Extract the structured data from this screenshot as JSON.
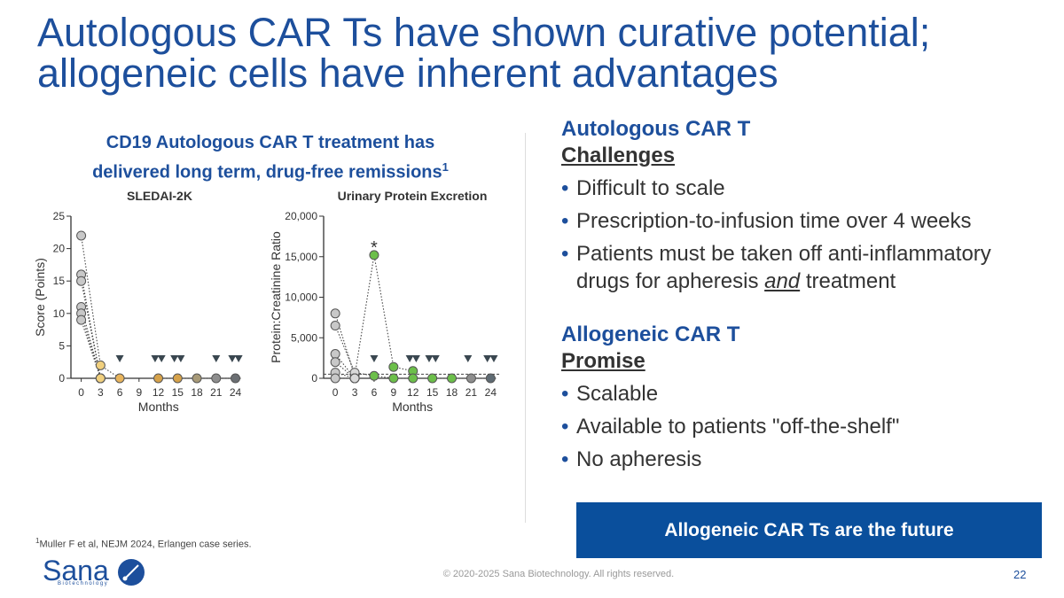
{
  "title": [
    "Autologous CAR Ts have shown curative potential;",
    "allogeneic cells have inherent advantages"
  ],
  "subtitle": {
    "lines": [
      "CD19 Autologous CAR T treatment has",
      "delivered long term, drug-free remissions"
    ],
    "ref": "1"
  },
  "chart_data": [
    {
      "type": "line",
      "title": "SLEDAI-2K",
      "xlabel": "Months",
      "ylabel": "Score (Points)",
      "xlim": [
        -1.6,
        26
      ],
      "ylim": [
        0,
        25
      ],
      "xticks": [
        0,
        3,
        6,
        9,
        12,
        15,
        18,
        21,
        24
      ],
      "yticks": [
        0,
        5,
        10,
        15,
        20,
        25
      ],
      "point_colors": [
        "#c8c8c8",
        "#f1d07e",
        "#e8b45c",
        "#dcaa52",
        "#d6a24a",
        "#d6a24a",
        "#a89a78",
        "#8e8e8e",
        "#6b6f73"
      ],
      "series": [
        {
          "x": [
            0,
            3,
            6
          ],
          "values": [
            22,
            2,
            0
          ]
        },
        {
          "x": [
            0,
            3
          ],
          "values": [
            16,
            0
          ]
        },
        {
          "x": [
            0,
            3
          ],
          "values": [
            15,
            0
          ]
        },
        {
          "x": [
            0,
            3
          ],
          "values": [
            11,
            0
          ]
        },
        {
          "x": [
            0,
            3
          ],
          "values": [
            10,
            0
          ]
        },
        {
          "x": [
            0,
            3
          ],
          "values": [
            9,
            0
          ]
        },
        {
          "x": [
            12,
            15,
            18,
            21,
            24
          ],
          "values": [
            0,
            0,
            0,
            0,
            0
          ]
        }
      ],
      "drug_free_x": [
        6,
        11.5,
        12.5,
        14.5,
        15.5,
        21,
        23.5,
        24.5
      ]
    },
    {
      "type": "line",
      "title": "Urinary Protein Excretion",
      "xlabel": "Months",
      "ylabel": "Protein:Creatinine Ratio",
      "xlim": [
        -1.8,
        25.6
      ],
      "ylim": [
        0,
        20000
      ],
      "xticks": [
        0,
        3,
        6,
        9,
        12,
        15,
        18,
        21,
        24
      ],
      "yticks": [
        0,
        {
          "value": 5000,
          "label": "5,000"
        },
        {
          "value": 10000,
          "label": "10,000"
        },
        {
          "value": 15000,
          "label": "15,000"
        },
        {
          "value": 20000,
          "label": "20,000"
        }
      ],
      "point_colors": [
        "#c8c8c8",
        "#d9d9d9",
        "#6cbf4a",
        "#6cbf4a",
        "#6cbf4a",
        "#6cbf4a",
        "#6cbf4a",
        "#8e8e8e",
        "#5f6b73"
      ],
      "threshold": 500,
      "series": [
        {
          "x": [
            0,
            3,
            6,
            9,
            12
          ],
          "values": [
            8000,
            300,
            15200,
            1400,
            900
          ]
        },
        {
          "x": [
            0,
            3,
            6,
            9,
            12
          ],
          "values": [
            6500,
            700,
            300,
            0,
            0
          ]
        },
        {
          "x": [
            0,
            3
          ],
          "values": [
            3000,
            0
          ]
        },
        {
          "x": [
            0,
            3
          ],
          "values": [
            2000,
            0
          ]
        },
        {
          "x": [
            0,
            3
          ],
          "values": [
            700,
            0
          ]
        },
        {
          "x": [
            0,
            3
          ],
          "values": [
            0,
            0
          ]
        },
        {
          "x": [
            15,
            18,
            21,
            24
          ],
          "values": [
            0,
            0,
            0,
            0
          ]
        }
      ],
      "drug_free_x": [
        6,
        11.5,
        12.5,
        14.5,
        15.5,
        20.5,
        23.5,
        24.5
      ],
      "annotation": {
        "text": "*",
        "x": 6
      }
    }
  ],
  "autologous": {
    "heading": "Autologous CAR T",
    "subheading": "Challenges",
    "bullets": [
      [
        "Difficult to scale"
      ],
      [
        "Prescription-to-infusion time over 4 weeks"
      ],
      [
        "Patients must be taken off anti-inflammatory drugs for apheresis ",
        "and",
        " treatment"
      ]
    ]
  },
  "allogeneic": {
    "heading": "Allogeneic CAR T",
    "subheading": "Promise",
    "bullets": [
      [
        "Scalable"
      ],
      [
        "Available to patients \"off-the-shelf\""
      ],
      [
        "No apheresis"
      ]
    ]
  },
  "callout": "Allogeneic CAR Ts are the future",
  "footnote": {
    "ref": "1",
    "text": "Muller F et al, NEJM 2024, Erlangen case series."
  },
  "logo": {
    "name": "Sana",
    "tagline": "Biotechnology"
  },
  "copyright": "© 2020-2025 Sana Biotechnology. All rights reserved.",
  "page_number": "22"
}
